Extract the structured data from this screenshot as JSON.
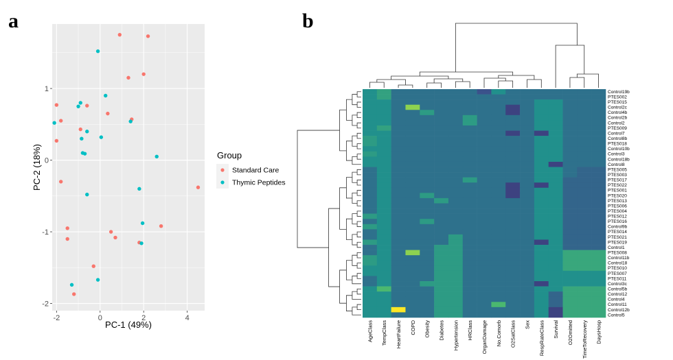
{
  "panels": {
    "a": "a",
    "b": "b"
  },
  "chart_data": [
    {
      "type": "scatter",
      "xlabel": "PC-1 (49%)",
      "ylabel": "PC-2 (18%)",
      "xlim": [
        -2.2,
        4.8
      ],
      "ylim": [
        -2.1,
        1.9
      ],
      "xticks": [
        -2,
        0,
        2,
        4
      ],
      "yticks": [
        -2,
        -1,
        0,
        1
      ],
      "grid": true,
      "legend_position": "right",
      "legend_title": "Group",
      "series": [
        {
          "name": "Standard Care",
          "color": "#f8766d",
          "points": [
            [
              0.9,
              1.75
            ],
            [
              2.2,
              1.73
            ],
            [
              2.0,
              1.2
            ],
            [
              1.3,
              1.15
            ],
            [
              -2.0,
              0.77
            ],
            [
              -0.6,
              0.76
            ],
            [
              -1.8,
              0.55
            ],
            [
              0.35,
              0.65
            ],
            [
              1.45,
              0.57
            ],
            [
              -0.9,
              0.43
            ],
            [
              -2.0,
              0.27
            ],
            [
              -1.8,
              -0.3
            ],
            [
              4.5,
              -0.38
            ],
            [
              -1.5,
              -0.95
            ],
            [
              0.5,
              -1.0
            ],
            [
              0.7,
              -1.08
            ],
            [
              -1.5,
              -1.1
            ],
            [
              1.8,
              -1.15
            ],
            [
              2.8,
              -0.92
            ],
            [
              -0.3,
              -1.48
            ],
            [
              -1.2,
              -1.87
            ]
          ]
        },
        {
          "name": "Thymic Peptides",
          "color": "#00bfc4",
          "points": [
            [
              -0.1,
              1.52
            ],
            [
              0.25,
              0.9
            ],
            [
              -0.9,
              0.8
            ],
            [
              -1.0,
              0.75
            ],
            [
              1.4,
              0.54
            ],
            [
              -2.1,
              0.52
            ],
            [
              -0.6,
              0.4
            ],
            [
              -0.85,
              0.3
            ],
            [
              0.05,
              0.32
            ],
            [
              -0.8,
              0.1
            ],
            [
              -0.7,
              0.09
            ],
            [
              2.6,
              0.05
            ],
            [
              1.8,
              -0.4
            ],
            [
              -0.6,
              -0.48
            ],
            [
              1.95,
              -0.88
            ],
            [
              1.9,
              -1.16
            ],
            [
              -1.3,
              -1.74
            ],
            [
              -0.1,
              -1.67
            ]
          ]
        }
      ]
    },
    {
      "type": "heatmap",
      "title": "",
      "palette": [
        "#440154",
        "#3b528b",
        "#21908c",
        "#5dc963",
        "#fde725"
      ],
      "columns": [
        "AgeClass",
        "TempClass",
        "HeartFailure",
        "COPD",
        "Obesity",
        "Diabetes",
        "Hypertension",
        "HRClass",
        "OrganDamage",
        "No.Comorb",
        "O2SatClass",
        "Sex",
        "RespRateClass",
        "Survival",
        "O2Omitted",
        "TimeToRecovery",
        "DaysHosp"
      ],
      "rows": [
        "Control19b",
        "PTES002",
        "PTES015",
        "Control2c",
        "Control4b",
        "Control2b",
        "Control2",
        "PTES009",
        "Control7",
        "Control8b",
        "PTES018",
        "Control10b",
        "Control3",
        "Control18b",
        "Control8",
        "PTES005",
        "PTES003",
        "PTES017",
        "PTES022",
        "PTES001",
        "PTES020",
        "PTES013",
        "PTES006",
        "PTES004",
        "PTES012",
        "PTES016",
        "Control9b",
        "PTES014",
        "PTES021",
        "PTES019",
        "Control1",
        "PTES008",
        "Control11b",
        "Control18",
        "PTES010",
        "PTES007",
        "PTES011",
        "Control3c",
        "Control5b",
        "Control12",
        "Control4",
        "Control11",
        "Control12b",
        "Control5"
      ],
      "values": [
        [
          2,
          2.3,
          1.5,
          1.5,
          1.5,
          1.5,
          1.5,
          1.5,
          1,
          2,
          1.5,
          1.5,
          1.5,
          1.5,
          1.5,
          1.5,
          1.5
        ],
        [
          2,
          2.3,
          1.5,
          1.5,
          1.5,
          1.5,
          1.5,
          1.5,
          1.5,
          1.5,
          1.5,
          1.5,
          1.5,
          1.5,
          1.5,
          1.5,
          1.5
        ],
        [
          2,
          2,
          1.5,
          1.5,
          1.5,
          1.5,
          1.5,
          1.5,
          1.5,
          1.5,
          1.5,
          1.5,
          2,
          2,
          1.5,
          1.5,
          1.5
        ],
        [
          2,
          2,
          1.5,
          3.3,
          1.5,
          1.5,
          1.5,
          1.5,
          1.5,
          1.5,
          0.8,
          1.5,
          2,
          2,
          1.5,
          1.5,
          1.5
        ],
        [
          2,
          2,
          1.5,
          1.5,
          2.2,
          1.5,
          1.5,
          1.5,
          1.5,
          1.5,
          0.8,
          1.5,
          2,
          2,
          1.5,
          1.5,
          1.5
        ],
        [
          2,
          2,
          1.5,
          1.5,
          1.5,
          1.5,
          1.5,
          2.2,
          1.5,
          1.5,
          1.5,
          1.5,
          2,
          2,
          1.5,
          1.5,
          1.5
        ],
        [
          2,
          2,
          1.5,
          1.5,
          1.5,
          1.5,
          1.5,
          2.2,
          1.5,
          1.5,
          1.5,
          1.5,
          2,
          2,
          1.5,
          1.5,
          1.5
        ],
        [
          2,
          2.3,
          1.5,
          1.5,
          1.5,
          1.5,
          1.5,
          1.5,
          1.5,
          1.5,
          1.5,
          1.5,
          2,
          2,
          1.5,
          1.5,
          1.5
        ],
        [
          2,
          2,
          1.5,
          1.5,
          1.5,
          1.5,
          1.5,
          1.5,
          1.5,
          1.5,
          0.8,
          1.5,
          0.8,
          2,
          1.5,
          1.5,
          1.5
        ],
        [
          2.2,
          2,
          1.5,
          1.5,
          1.5,
          1.5,
          1.5,
          1.5,
          1.5,
          1.5,
          1.5,
          1.5,
          2,
          2,
          1.5,
          1.5,
          1.5
        ],
        [
          2.2,
          2,
          1.5,
          1.5,
          1.5,
          1.5,
          1.5,
          1.5,
          1.5,
          1.5,
          1.5,
          1.5,
          2,
          2,
          1.5,
          1.5,
          1.5
        ],
        [
          2,
          2,
          1.5,
          1.5,
          1.5,
          1.5,
          1.5,
          1.5,
          1.5,
          1.5,
          1.5,
          1.5,
          2,
          2,
          1.5,
          1.5,
          1.5
        ],
        [
          2.2,
          2,
          1.5,
          1.5,
          1.5,
          1.5,
          1.5,
          1.5,
          1.5,
          1.5,
          1.5,
          1.5,
          2,
          2,
          1.5,
          1.5,
          1.5
        ],
        [
          2,
          2,
          1.5,
          1.5,
          1.5,
          1.5,
          1.5,
          1.5,
          1.5,
          1.5,
          1.5,
          1.5,
          2,
          2,
          1.5,
          1.5,
          1.5
        ],
        [
          2,
          2,
          1.5,
          1.5,
          1.5,
          1.5,
          1.5,
          1.5,
          1.5,
          1.5,
          1.5,
          1.5,
          2,
          0.8,
          1.5,
          1.5,
          1.5
        ],
        [
          1.5,
          2,
          1.5,
          1.5,
          1.5,
          1.5,
          1.5,
          1.5,
          1.5,
          1.5,
          1.5,
          1.5,
          2,
          2,
          1.5,
          1.3,
          1.3
        ],
        [
          1.5,
          2,
          1.5,
          1.5,
          1.5,
          1.5,
          1.5,
          1.5,
          1.5,
          1.5,
          1.5,
          1.5,
          2,
          2,
          1.5,
          1.3,
          1.3
        ],
        [
          1.5,
          2,
          1.5,
          1.5,
          1.5,
          1.5,
          1.5,
          2.2,
          1.5,
          1.5,
          1.5,
          1.5,
          2,
          2,
          1.3,
          1.3,
          1.3
        ],
        [
          1.5,
          2,
          1.5,
          1.5,
          1.5,
          1.5,
          1.5,
          1.5,
          1.5,
          1.5,
          0.8,
          1.5,
          0.8,
          2,
          1.3,
          1.3,
          1.3
        ],
        [
          1.5,
          2,
          1.5,
          1.5,
          1.5,
          1.5,
          1.5,
          1.5,
          1.5,
          1.5,
          0.8,
          1.5,
          2,
          2,
          1.3,
          1.3,
          1.3
        ],
        [
          1.5,
          2,
          1.5,
          1.5,
          2.2,
          1.5,
          1.5,
          1.5,
          1.5,
          1.5,
          0.8,
          1.5,
          2,
          2,
          1.3,
          1.3,
          1.3
        ],
        [
          1.5,
          2,
          1.5,
          1.5,
          1.5,
          2.2,
          1.5,
          1.5,
          1.5,
          1.5,
          1.5,
          1.5,
          2,
          2,
          1.3,
          1.3,
          1.3
        ],
        [
          1.5,
          2,
          1.5,
          1.5,
          1.5,
          1.5,
          1.5,
          1.5,
          1.5,
          1.5,
          1.5,
          1.5,
          2,
          2,
          1.3,
          1.3,
          1.3
        ],
        [
          1.5,
          2,
          1.5,
          1.5,
          1.5,
          1.5,
          1.5,
          1.5,
          1.5,
          1.5,
          1.5,
          1.5,
          2,
          2,
          1.3,
          1.3,
          1.3
        ],
        [
          2.2,
          2,
          1.5,
          1.5,
          1.5,
          1.5,
          1.5,
          1.5,
          1.5,
          1.5,
          1.5,
          1.5,
          2,
          2,
          1.3,
          1.3,
          1.3
        ],
        [
          1.5,
          2,
          1.5,
          1.5,
          2.2,
          1.5,
          1.5,
          1.5,
          1.5,
          1.5,
          1.5,
          1.5,
          2,
          2,
          1.3,
          1.3,
          1.3
        ],
        [
          2.2,
          2,
          1.5,
          1.5,
          1.5,
          1.5,
          1.5,
          1.5,
          1.5,
          1.5,
          1.5,
          1.5,
          2,
          2,
          1.3,
          1.3,
          1.3
        ],
        [
          1.5,
          2,
          1.5,
          1.5,
          1.5,
          1.5,
          1.5,
          1.5,
          1.5,
          1.5,
          1.5,
          1.5,
          2,
          2,
          1.3,
          1.3,
          1.3
        ],
        [
          1.5,
          2,
          1.5,
          1.5,
          1.5,
          1.5,
          2.2,
          1.5,
          1.5,
          1.5,
          1.5,
          1.5,
          2,
          2,
          1.3,
          1.3,
          1.3
        ],
        [
          2.2,
          2,
          1.5,
          1.5,
          1.5,
          1.5,
          2.2,
          1.5,
          1.5,
          1.5,
          1.5,
          1.5,
          0.8,
          2,
          1.3,
          1.3,
          1.3
        ],
        [
          1.5,
          2,
          1.5,
          1.5,
          1.5,
          2.2,
          2.2,
          1.5,
          1.5,
          1.5,
          1.5,
          1.5,
          2,
          2,
          1.3,
          1.3,
          1.3
        ],
        [
          1.5,
          2,
          1.5,
          3.3,
          1.5,
          2.2,
          2.2,
          1.5,
          1.5,
          1.5,
          1.5,
          1.5,
          2,
          2,
          2.4,
          2.4,
          2.4
        ],
        [
          2.2,
          2,
          1.5,
          1.5,
          1.5,
          2.2,
          2.2,
          1.5,
          1.5,
          1.5,
          1.5,
          1.5,
          2,
          2,
          2.4,
          2.4,
          2.4
        ],
        [
          2.2,
          2,
          1.5,
          1.5,
          1.5,
          2.2,
          2.2,
          1.5,
          1.5,
          1.5,
          1.5,
          1.5,
          2,
          2,
          2.4,
          2.4,
          2.4
        ],
        [
          2,
          2,
          1.5,
          1.5,
          1.5,
          2.2,
          2.2,
          1.5,
          1.5,
          1.5,
          1.5,
          1.5,
          2,
          2,
          2.4,
          2.4,
          2.4
        ],
        [
          2,
          2,
          1.5,
          1.5,
          1.5,
          2.2,
          2.2,
          1.5,
          1.5,
          1.5,
          1.5,
          1.5,
          2,
          2,
          2,
          2,
          2
        ],
        [
          1.5,
          2,
          1.5,
          1.5,
          1.5,
          2.2,
          2.2,
          1.5,
          1.5,
          1.5,
          1.5,
          1.5,
          2,
          2,
          2,
          2,
          2
        ],
        [
          1.5,
          2,
          1.5,
          1.5,
          2.2,
          2.2,
          2.2,
          1.5,
          1.5,
          1.5,
          1.5,
          1.5,
          0.8,
          2,
          2,
          2,
          2
        ],
        [
          2,
          2.7,
          1.5,
          1.5,
          1.5,
          2.2,
          2.2,
          1.5,
          1.5,
          1.5,
          1.5,
          1.5,
          2,
          2,
          2.4,
          2.4,
          2.4
        ],
        [
          2,
          2,
          1.5,
          1.5,
          1.5,
          2.2,
          2.2,
          1.5,
          1.5,
          1.5,
          1.5,
          1.5,
          2,
          1.3,
          2.4,
          2.4,
          2.4
        ],
        [
          2,
          2,
          1.5,
          1.5,
          1.5,
          2.2,
          2.2,
          1.5,
          1.5,
          1.5,
          1.5,
          1.5,
          2,
          1.3,
          2.4,
          2.4,
          2.4
        ],
        [
          2,
          2,
          1.5,
          1.5,
          1.5,
          2.2,
          2.2,
          1.5,
          1.5,
          2.7,
          1.5,
          1.5,
          2,
          1.3,
          2.4,
          2.4,
          2.4
        ],
        [
          2,
          2,
          4,
          1.5,
          1.5,
          2.2,
          2.2,
          1.5,
          1.5,
          1.5,
          1.5,
          1.5,
          2,
          0.8,
          2.4,
          2.4,
          2.4
        ],
        [
          2,
          2,
          1.5,
          1.5,
          1.5,
          2.2,
          2.2,
          1.5,
          1.5,
          1.5,
          1.5,
          1.5,
          2,
          0.8,
          2.4,
          2.4,
          2.4
        ]
      ]
    }
  ]
}
